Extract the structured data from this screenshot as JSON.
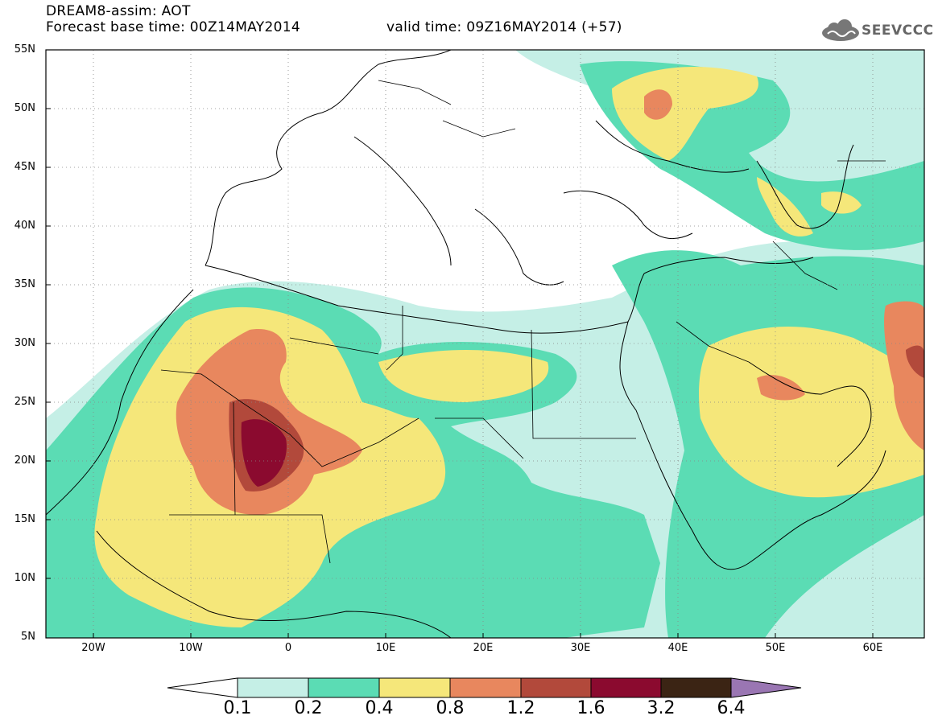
{
  "title": {
    "line1": "DREAM8-assim: AOT",
    "base": "Forecast base time: 00Z14MAY2014",
    "valid": "valid time: 09Z16MAY2014 (+57)"
  },
  "logo": {
    "text": "SEEVCCC",
    "icon": "cloud-icon"
  },
  "axes": {
    "lat_labels": [
      "55N",
      "50N",
      "45N",
      "40N",
      "35N",
      "30N",
      "25N",
      "20N",
      "15N",
      "10N",
      "5N"
    ],
    "lon_labels": [
      "20W",
      "10W",
      "0",
      "10E",
      "20E",
      "30E",
      "40E",
      "50E",
      "60E"
    ],
    "lat_range": [
      5,
      55
    ],
    "lon_range": [
      -25,
      65
    ]
  },
  "colorbar": {
    "labels": [
      "0.1",
      "0.2",
      "0.4",
      "0.8",
      "1.2",
      "1.6",
      "3.2",
      "6.4"
    ],
    "colors": [
      "#c5efe6",
      "#5bdcb4",
      "#f5e77a",
      "#e8875e",
      "#b2493b",
      "#8b0a2f",
      "#3b2414",
      "#9a76b3"
    ]
  }
}
